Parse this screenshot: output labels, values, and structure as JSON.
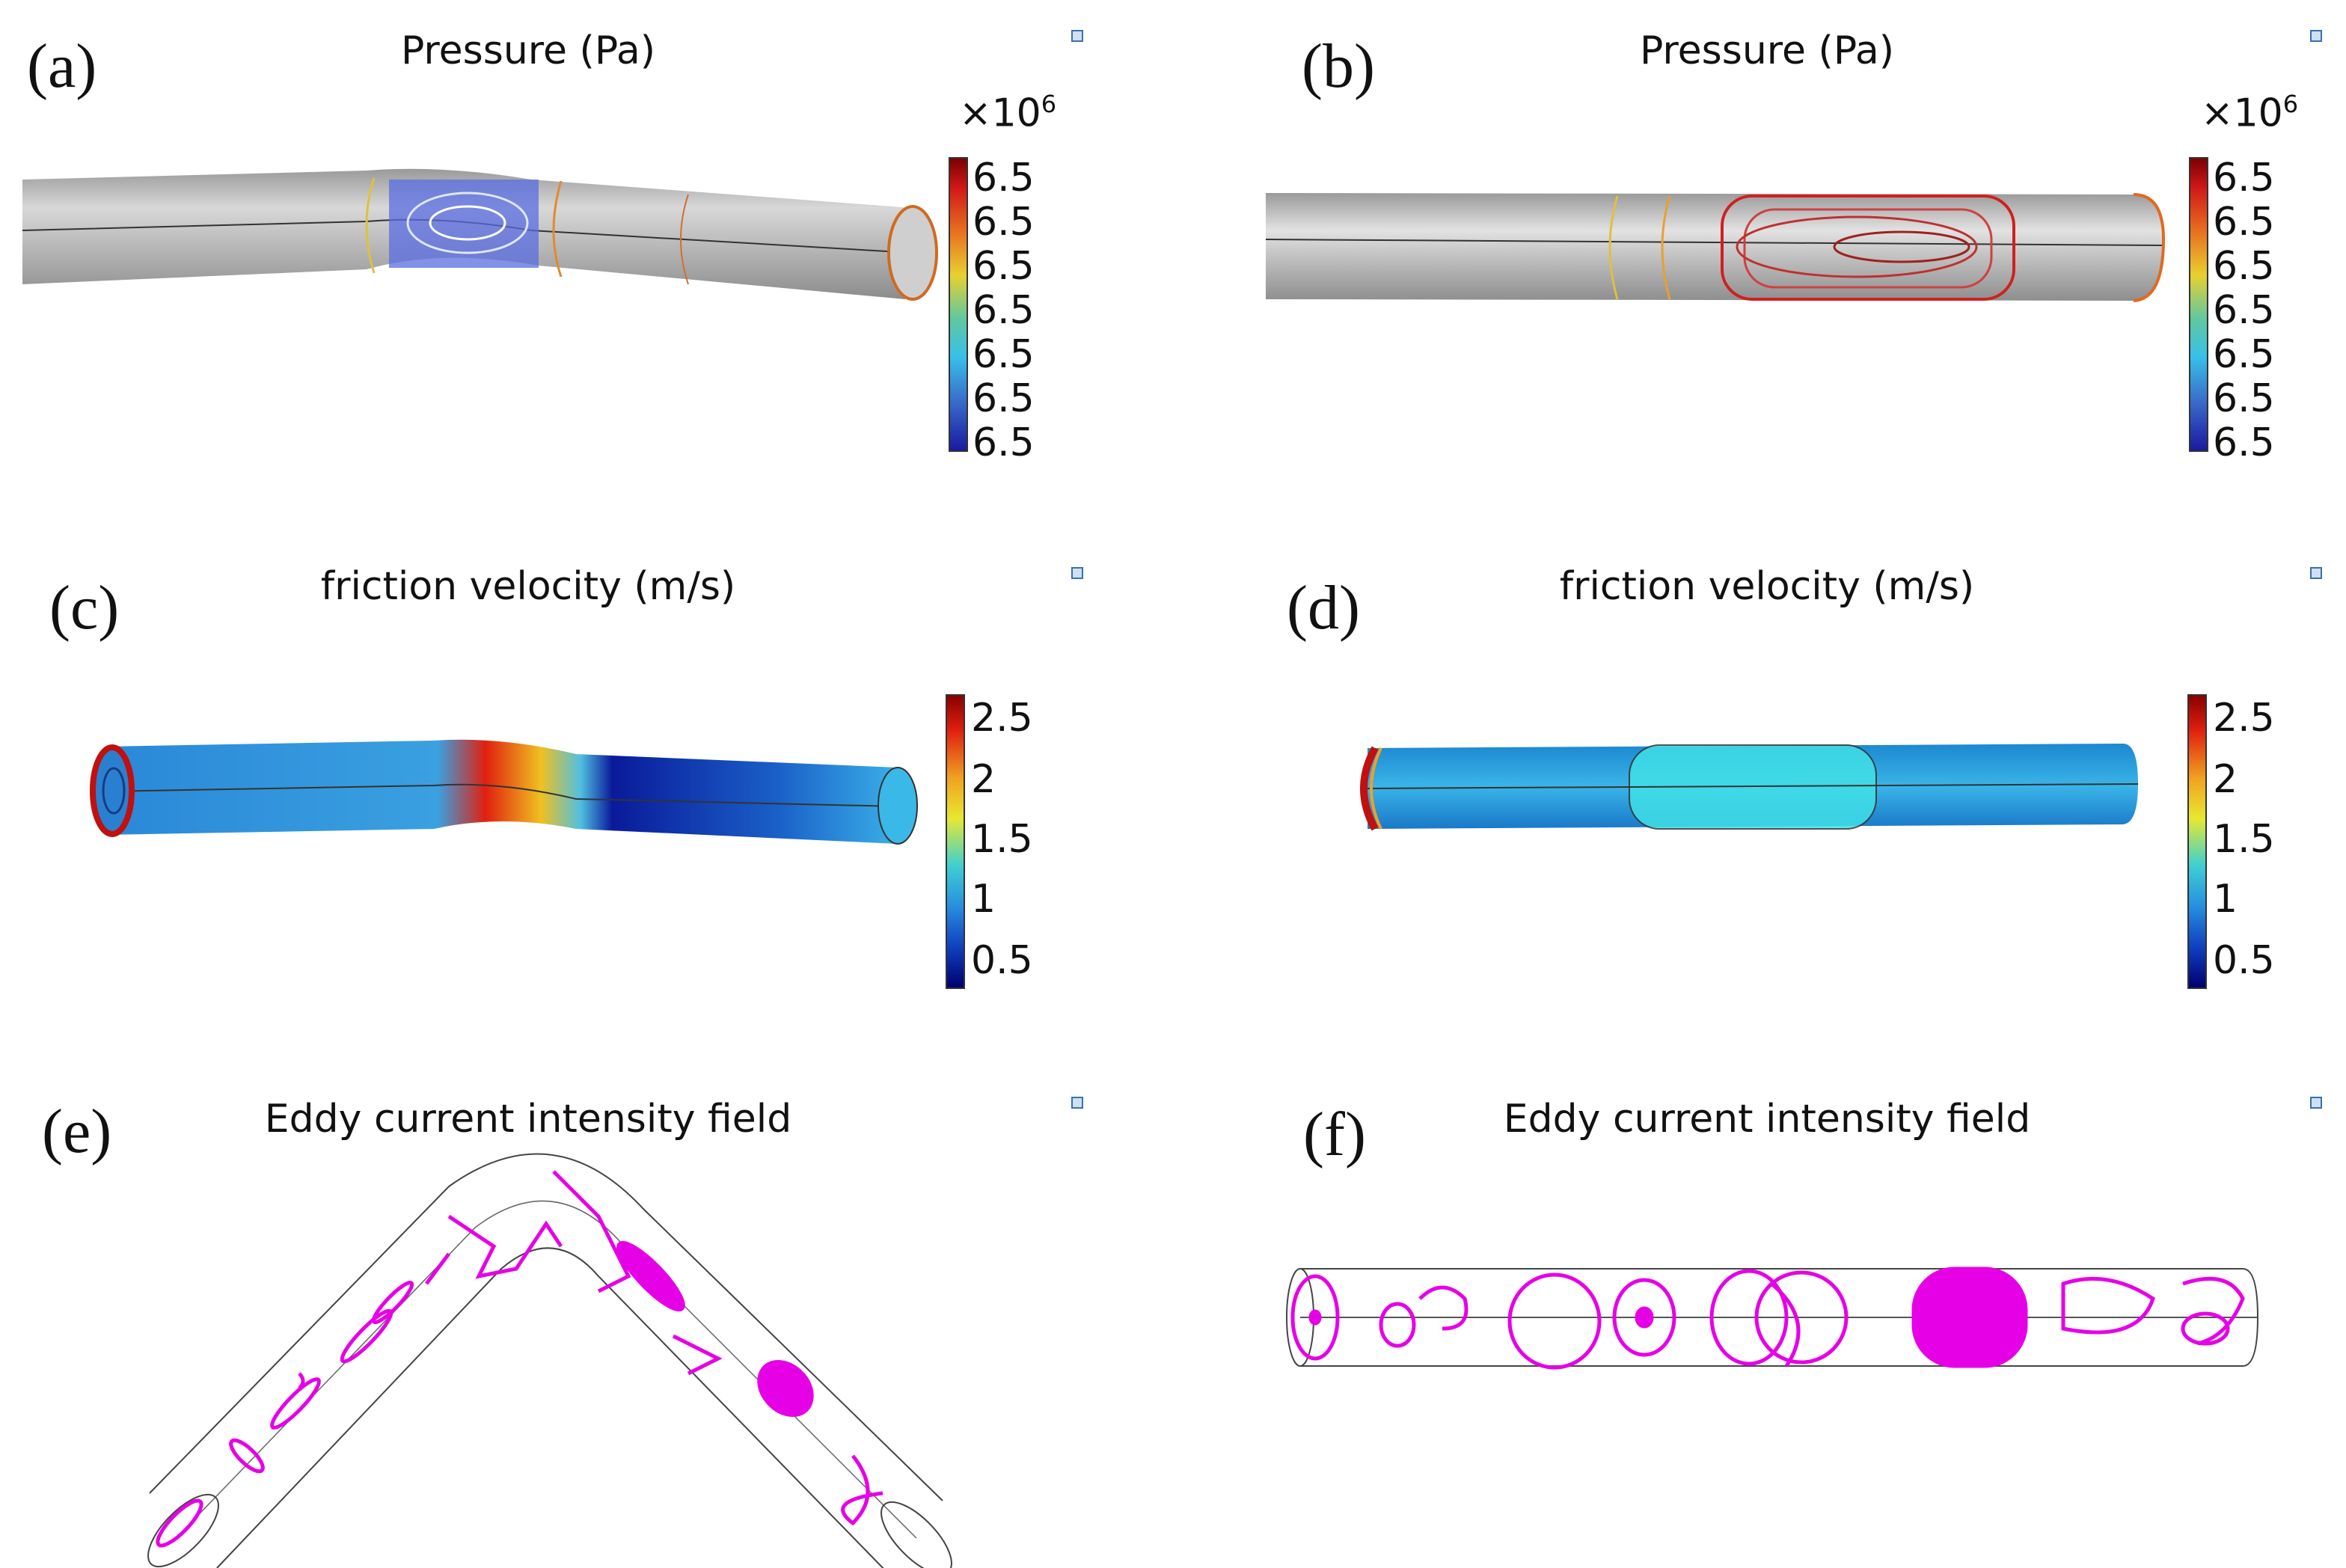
{
  "panels": [
    {
      "label": "(a)",
      "title": "Pressure (Pa)",
      "multiplier_base": "×10",
      "multiplier_exp": "6",
      "ticks": [
        "6.5",
        "6.5",
        "6.5",
        "6.5",
        "6.5",
        "6.5",
        "6.5"
      ]
    },
    {
      "label": "(b)",
      "title": "Pressure (Pa)",
      "multiplier_base": "×10",
      "multiplier_exp": "6",
      "ticks": [
        "6.5",
        "6.5",
        "6.5",
        "6.5",
        "6.5",
        "6.5",
        "6.5"
      ]
    },
    {
      "label": "(c)",
      "title": "friction velocity (m/s)",
      "ticks": [
        "2.5",
        "2",
        "1.5",
        "1",
        "0.5"
      ]
    },
    {
      "label": "(d)",
      "title": "friction velocity (m/s)",
      "ticks": [
        "2.5",
        "2",
        "1.5",
        "1",
        "0.5"
      ]
    },
    {
      "label": "(e)",
      "title": "Eddy current intensity field"
    },
    {
      "label": "(f)",
      "title": "Eddy current intensity field"
    }
  ],
  "colors": {
    "pressure_scale": [
      "#7b0000",
      "#d01818",
      "#e87020",
      "#e8d030",
      "#60c8a0",
      "#38c0e8",
      "#3868c8",
      "#1a1aa0"
    ],
    "friction_scale": [
      "#8a0000",
      "#e02010",
      "#f0a020",
      "#e8e830",
      "#40d0d0",
      "#2890e0",
      "#1040c0",
      "#000070"
    ],
    "eddy_lines": "#e600e6",
    "pipe_gray": "#b8b8b8"
  }
}
